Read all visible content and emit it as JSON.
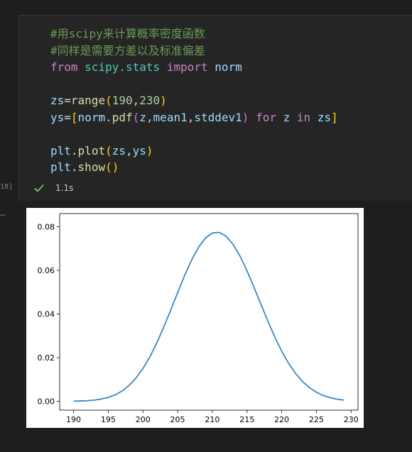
{
  "cell": {
    "execution_count": "18]",
    "status_time": "1.1s",
    "output_prompt": "..",
    "code_lines": [
      [
        {
          "t": "#用scipy来计算概率密度函数",
          "c": "cm"
        }
      ],
      [
        {
          "t": "#同样是需要方差以及标准偏差",
          "c": "cm"
        }
      ],
      [
        {
          "t": "from",
          "c": "kw"
        },
        {
          "t": " ",
          "c": "op"
        },
        {
          "t": "scipy.stats",
          "c": "mod"
        },
        {
          "t": " ",
          "c": "op"
        },
        {
          "t": "import",
          "c": "kw"
        },
        {
          "t": " ",
          "c": "op"
        },
        {
          "t": "norm",
          "c": "var"
        }
      ],
      [],
      [
        {
          "t": "zs",
          "c": "var"
        },
        {
          "t": "=",
          "c": "op"
        },
        {
          "t": "range",
          "c": "fn"
        },
        {
          "t": "(",
          "c": "b1"
        },
        {
          "t": "190",
          "c": "num"
        },
        {
          "t": ",",
          "c": "op"
        },
        {
          "t": "230",
          "c": "num"
        },
        {
          "t": ")",
          "c": "b1"
        }
      ],
      [
        {
          "t": "ys",
          "c": "var"
        },
        {
          "t": "=",
          "c": "op"
        },
        {
          "t": "[",
          "c": "b1"
        },
        {
          "t": "norm",
          "c": "var"
        },
        {
          "t": ".",
          "c": "op"
        },
        {
          "t": "pdf",
          "c": "fn"
        },
        {
          "t": "(",
          "c": "b2"
        },
        {
          "t": "z",
          "c": "var"
        },
        {
          "t": ",",
          "c": "op"
        },
        {
          "t": "mean1",
          "c": "var"
        },
        {
          "t": ",",
          "c": "op"
        },
        {
          "t": "stddev1",
          "c": "var"
        },
        {
          "t": ")",
          "c": "b2"
        },
        {
          "t": " ",
          "c": "op"
        },
        {
          "t": "for",
          "c": "kw"
        },
        {
          "t": " ",
          "c": "op"
        },
        {
          "t": "z",
          "c": "var"
        },
        {
          "t": " ",
          "c": "op"
        },
        {
          "t": "in",
          "c": "kw"
        },
        {
          "t": " ",
          "c": "op"
        },
        {
          "t": "zs",
          "c": "var"
        },
        {
          "t": "]",
          "c": "b1"
        }
      ],
      [],
      [
        {
          "t": "plt",
          "c": "var"
        },
        {
          "t": ".",
          "c": "op"
        },
        {
          "t": "plot",
          "c": "fn"
        },
        {
          "t": "(",
          "c": "b1"
        },
        {
          "t": "zs",
          "c": "var"
        },
        {
          "t": ",",
          "c": "op"
        },
        {
          "t": "ys",
          "c": "var"
        },
        {
          "t": ")",
          "c": "b1"
        }
      ],
      [
        {
          "t": "plt",
          "c": "var"
        },
        {
          "t": ".",
          "c": "op"
        },
        {
          "t": "show",
          "c": "fn"
        },
        {
          "t": "()",
          "c": "b1"
        }
      ]
    ]
  },
  "colors": {
    "line": "#3b87c0",
    "check": "#89d185"
  },
  "chart_data": {
    "type": "line",
    "x": [
      190,
      191,
      192,
      193,
      194,
      195,
      196,
      197,
      198,
      199,
      200,
      201,
      202,
      203,
      204,
      205,
      206,
      207,
      208,
      209,
      210,
      211,
      212,
      213,
      214,
      215,
      216,
      217,
      218,
      219,
      220,
      221,
      222,
      223,
      224,
      225,
      226,
      227,
      228,
      229
    ],
    "series": [
      {
        "values": [
          0.0001,
          0.0002,
          0.0003,
          0.0006,
          0.0011,
          0.0018,
          0.003,
          0.0048,
          0.0073,
          0.0107,
          0.015,
          0.0204,
          0.0268,
          0.034,
          0.0418,
          0.0498,
          0.0576,
          0.0646,
          0.0705,
          0.0748,
          0.0771,
          0.0774,
          0.0756,
          0.0719,
          0.0665,
          0.0598,
          0.0523,
          0.0445,
          0.0368,
          0.0295,
          0.023,
          0.0174,
          0.0128,
          0.0091,
          0.0063,
          0.0042,
          0.0027,
          0.0017,
          0.001,
          0.0006
        ]
      }
    ],
    "xlim": [
      188,
      231
    ],
    "ylim": [
      -0.004,
      0.086
    ],
    "xticks": [
      190,
      195,
      200,
      205,
      210,
      215,
      220,
      225,
      230
    ],
    "yticks": [
      0.0,
      0.02,
      0.04,
      0.06,
      0.08
    ],
    "ytick_labels": [
      "0.00",
      "0.02",
      "0.04",
      "0.06",
      "0.08"
    ],
    "xtick_labels": [
      "190",
      "195",
      "200",
      "205",
      "210",
      "215",
      "220",
      "225",
      "230"
    ],
    "grid": false
  }
}
